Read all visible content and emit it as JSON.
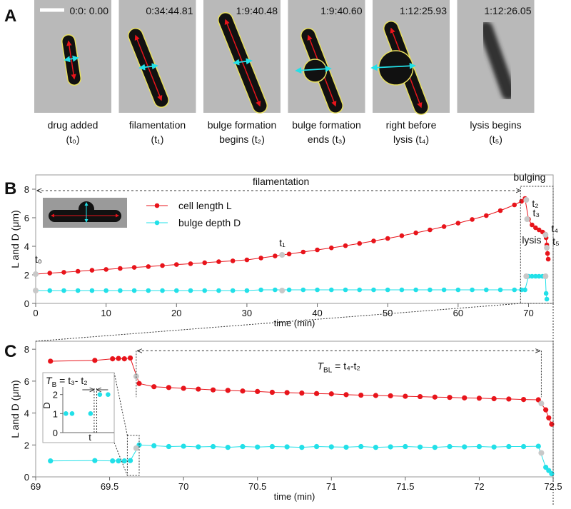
{
  "panel_labels": [
    "A",
    "B",
    "C"
  ],
  "images": [
    {
      "time": "0:0: 0.00",
      "caption": [
        "drug added",
        "(t₀)"
      ]
    },
    {
      "time": "0:34:44.81",
      "caption": [
        "filamentation",
        "(t₁)"
      ]
    },
    {
      "time": "1:9:40.48",
      "caption": [
        "bulge formation",
        "begins (t₂)"
      ]
    },
    {
      "time": "1:9:40.60",
      "caption": [
        "bulge formation",
        "ends (t₃)"
      ]
    },
    {
      "time": "1:12:25.93",
      "caption": [
        "right before",
        "lysis (t₄)"
      ]
    },
    {
      "time": "1:12:26.05",
      "caption": [
        "lysis begins",
        "(t₅)"
      ]
    }
  ],
  "chart_data": [
    {
      "type": "line",
      "x_label": "time (min)",
      "y_label": "L and D (μm)",
      "xlim": [
        0,
        73.5
      ],
      "ylim": [
        0,
        9
      ],
      "xticks": [
        0,
        10,
        20,
        30,
        40,
        50,
        60,
        70
      ],
      "yticks": [
        0,
        2,
        4,
        6,
        8
      ],
      "series": [
        {
          "name": "cell length L",
          "color": "#e8141b",
          "x": [
            0,
            2,
            4,
            6,
            8,
            10,
            12,
            14,
            16,
            18,
            20,
            22,
            24,
            26,
            28,
            30,
            32,
            34,
            36,
            38,
            40,
            42,
            44,
            46,
            48,
            50,
            52,
            54,
            56,
            58,
            60,
            62,
            64,
            66,
            68,
            69,
            69.5,
            70,
            70.5,
            71,
            71.5,
            72,
            72.4,
            72.5,
            72.6,
            72.7,
            72.8
          ],
          "values": [
            2.05,
            2.12,
            2.18,
            2.25,
            2.32,
            2.38,
            2.45,
            2.52,
            2.58,
            2.65,
            2.72,
            2.78,
            2.85,
            2.92,
            2.98,
            3.05,
            3.18,
            3.32,
            3.46,
            3.6,
            3.75,
            3.89,
            4.04,
            4.2,
            4.37,
            4.55,
            4.74,
            4.94,
            5.15,
            5.38,
            5.62,
            5.88,
            6.15,
            6.5,
            6.9,
            7.15,
            7.35,
            5.9,
            5.5,
            5.3,
            5.15,
            5.0,
            4.85,
            4.6,
            4.1,
            3.5,
            3.1
          ]
        },
        {
          "name": "bulge depth D",
          "color": "#22e0e8",
          "x": [
            0,
            2,
            4,
            6,
            8,
            10,
            12,
            14,
            16,
            18,
            20,
            22,
            24,
            26,
            28,
            30,
            32,
            34,
            36,
            38,
            40,
            42,
            44,
            46,
            48,
            50,
            52,
            54,
            56,
            58,
            60,
            62,
            64,
            66,
            68,
            69,
            69.5,
            70,
            70.5,
            71,
            71.5,
            72,
            72.4,
            72.5,
            72.6
          ],
          "values": [
            0.9,
            0.9,
            0.9,
            0.9,
            0.9,
            0.9,
            0.9,
            0.9,
            0.9,
            0.9,
            0.9,
            0.9,
            0.9,
            0.9,
            0.9,
            0.9,
            0.95,
            0.95,
            0.95,
            0.95,
            0.95,
            0.95,
            0.95,
            0.95,
            0.95,
            0.95,
            0.95,
            0.95,
            0.95,
            0.95,
            0.95,
            0.95,
            0.95,
            0.95,
            0.95,
            0.95,
            0.95,
            1.9,
            1.9,
            1.9,
            1.9,
            1.9,
            1.9,
            0.7,
            0.3
          ]
        }
      ],
      "key_color": "#c8c8c8",
      "key_points": [
        {
          "label": "t₀",
          "x": 0,
          "L": 2.05,
          "D": 0.9
        },
        {
          "label": "t₁",
          "x": 35,
          "L": 3.4,
          "D": 0.9
        },
        {
          "label": "t₂",
          "x": 69.68,
          "L": 7.25,
          "D": 1.9
        },
        {
          "label": "t₃",
          "x": 69.8,
          "L": 5.9
        },
        {
          "label": "t₄",
          "x": 72.42,
          "L": 4.8,
          "D": 1.9
        },
        {
          "label": "t₅",
          "x": 72.6,
          "L": 3.9
        }
      ],
      "annotations": [
        "filamentation",
        "bulging",
        "lysis"
      ]
    },
    {
      "type": "line",
      "x_label": "time (min)",
      "y_label": "L and D (μm)",
      "xlim": [
        69,
        72.5
      ],
      "ylim": [
        0,
        8.5
      ],
      "xticks": [
        69,
        69.5,
        70,
        70.5,
        71,
        71.5,
        72,
        72.5
      ],
      "yticks": [
        0,
        2,
        4,
        6,
        8
      ],
      "series": [
        {
          "color": "#e8141b",
          "x": [
            69.1,
            69.4,
            69.52,
            69.56,
            69.6,
            69.64,
            69.7,
            69.8,
            69.9,
            70,
            70.1,
            70.2,
            70.3,
            70.4,
            70.5,
            70.6,
            70.7,
            70.8,
            70.9,
            71,
            71.1,
            71.2,
            71.3,
            71.4,
            71.5,
            71.6,
            71.7,
            71.8,
            71.9,
            72,
            72.1,
            72.2,
            72.3,
            72.4,
            72.45,
            72.47,
            72.49
          ],
          "values": [
            7.25,
            7.3,
            7.4,
            7.42,
            7.4,
            7.45,
            5.85,
            5.65,
            5.6,
            5.55,
            5.5,
            5.45,
            5.42,
            5.38,
            5.35,
            5.3,
            5.28,
            5.25,
            5.22,
            5.2,
            5.15,
            5.12,
            5.1,
            5.08,
            5.05,
            5.03,
            5.0,
            4.98,
            4.95,
            4.93,
            4.9,
            4.88,
            4.85,
            4.83,
            4.2,
            3.7,
            3.3
          ]
        },
        {
          "color": "#22e0e8",
          "x": [
            69.1,
            69.4,
            69.52,
            69.56,
            69.6,
            69.64,
            69.7,
            69.8,
            69.9,
            70,
            70.1,
            70.2,
            70.3,
            70.4,
            70.5,
            70.6,
            70.7,
            70.8,
            70.9,
            71,
            71.1,
            71.2,
            71.3,
            71.4,
            71.5,
            71.6,
            71.7,
            71.8,
            71.9,
            72,
            72.1,
            72.2,
            72.3,
            72.4,
            72.45,
            72.47,
            72.49
          ],
          "values": [
            1.0,
            1.02,
            1.0,
            1.0,
            1.0,
            1.02,
            2.0,
            1.95,
            1.9,
            1.92,
            1.88,
            1.9,
            1.85,
            1.9,
            1.87,
            1.9,
            1.88,
            1.85,
            1.9,
            1.88,
            1.86,
            1.9,
            1.85,
            1.88,
            1.9,
            1.87,
            1.85,
            1.9,
            1.88,
            1.9,
            1.87,
            1.9,
            1.9,
            1.92,
            0.6,
            0.4,
            0.2
          ]
        }
      ],
      "key_color": "#c8c8c8",
      "key_points": [
        {
          "x": 69.68,
          "L": 6.3,
          "D": 1.8
        },
        {
          "x": 72.42,
          "L": 4.6,
          "D": 1.5
        }
      ],
      "intervals": [
        {
          "symbol": "T",
          "sub": "B",
          "rest": " = t₃- t₂"
        },
        {
          "symbol": "T",
          "sub": "BL",
          "rest": " = t₄-t₂"
        }
      ],
      "inset": {
        "type": "scatter",
        "x_label": "t",
        "y_label": "D",
        "xlim": [
          0,
          10
        ],
        "ylim": [
          0,
          2.4
        ],
        "yticks": [
          0,
          1,
          2
        ],
        "x": [
          0.6,
          1.8,
          5.4,
          7.2,
          8.8
        ],
        "values": [
          1,
          1,
          1,
          2,
          2
        ],
        "color": "#22e0e8"
      }
    }
  ]
}
